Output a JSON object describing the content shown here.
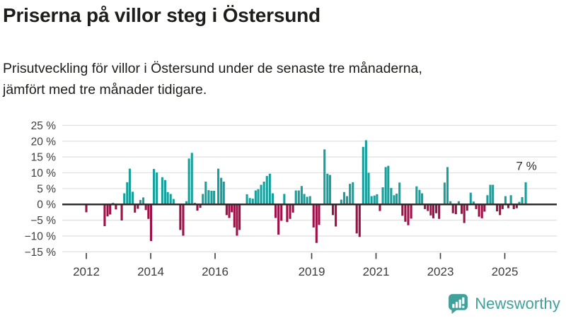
{
  "header": {
    "title": "Priserna på villor steg i Östersund",
    "subtitle_lines": [
      "Prisutveckling för villor i Östersund under de senaste tre månaderna,",
      "jämfört med tre månader tidigare."
    ]
  },
  "logo": {
    "text": "Newsworthy",
    "color": "#41a099",
    "icon": "bar-chart-speech-bubble-icon"
  },
  "chart_data": {
    "type": "bar",
    "title": "Priserna på villor steg i Östersund",
    "ylabel": "",
    "xlabel": "",
    "unit": "%",
    "ylim": [
      -15,
      25
    ],
    "y_ticks": [
      25,
      20,
      15,
      10,
      5,
      0,
      -5,
      -10,
      -15
    ],
    "x_tick_labels": [
      2012,
      2014,
      2016,
      2019,
      2021,
      2023,
      2025
    ],
    "grid": "horizontal",
    "legend": "none",
    "annotation": {
      "text": "7 %",
      "t": 2025.65,
      "value": 7
    },
    "colors": {
      "positive": "#18a19c",
      "negative": "#9e1148",
      "zero_line": "#2d2d2d",
      "gridline": "#e1e1e1"
    },
    "series_name": "Prisutveckling villor Östersund (3 mån vs föregående 3 mån), %",
    "series": [
      [
        2012.0,
        -2.5
      ],
      [
        2012.57,
        -6.9
      ],
      [
        2012.66,
        -3.8
      ],
      [
        2012.74,
        -3.2
      ],
      [
        2012.83,
        0.5
      ],
      [
        2012.92,
        -1.6
      ],
      [
        2013.1,
        -5.1
      ],
      [
        2013.18,
        3.5
      ],
      [
        2013.27,
        7.0
      ],
      [
        2013.35,
        11.3
      ],
      [
        2013.44,
        4.0
      ],
      [
        2013.51,
        -2.6
      ],
      [
        2013.6,
        -1.4
      ],
      [
        2013.68,
        1.4
      ],
      [
        2013.77,
        2.2
      ],
      [
        2013.85,
        -1.8
      ],
      [
        2013.93,
        -4.6
      ],
      [
        2014.01,
        -11.6
      ],
      [
        2014.1,
        11.2
      ],
      [
        2014.19,
        10.1
      ],
      [
        2014.36,
        8.6
      ],
      [
        2014.45,
        7.7
      ],
      [
        2014.53,
        3.9
      ],
      [
        2014.62,
        3.3
      ],
      [
        2014.71,
        1.7
      ],
      [
        2014.92,
        -8.1
      ],
      [
        2015.01,
        -9.9
      ],
      [
        2015.11,
        1.0
      ],
      [
        2015.19,
        14.5
      ],
      [
        2015.28,
        16.3
      ],
      [
        2015.37,
        0.5
      ],
      [
        2015.45,
        -2.0
      ],
      [
        2015.54,
        -1.1
      ],
      [
        2015.62,
        3.3
      ],
      [
        2015.71,
        7.2
      ],
      [
        2015.8,
        4.5
      ],
      [
        2015.89,
        4.3
      ],
      [
        2015.97,
        4.3
      ],
      [
        2016.1,
        11.3
      ],
      [
        2016.19,
        8.4
      ],
      [
        2016.27,
        7.2
      ],
      [
        2016.36,
        -3.4
      ],
      [
        2016.44,
        -4.3
      ],
      [
        2016.52,
        -2.5
      ],
      [
        2016.6,
        -7.3
      ],
      [
        2016.68,
        -9.9
      ],
      [
        2016.76,
        -8.1
      ],
      [
        2016.99,
        3.2
      ],
      [
        2017.08,
        2.0
      ],
      [
        2017.17,
        1.8
      ],
      [
        2017.26,
        4.4
      ],
      [
        2017.34,
        4.8
      ],
      [
        2017.43,
        6.2
      ],
      [
        2017.52,
        7.2
      ],
      [
        2017.61,
        9.0
      ],
      [
        2017.7,
        9.7
      ],
      [
        2017.79,
        3.5
      ],
      [
        2017.88,
        -4.3
      ],
      [
        2017.97,
        -9.6
      ],
      [
        2018.06,
        -5.2
      ],
      [
        2018.15,
        3.3
      ],
      [
        2018.24,
        -5.6
      ],
      [
        2018.33,
        -4.6
      ],
      [
        2018.42,
        -2.6
      ],
      [
        2018.51,
        4.4
      ],
      [
        2018.6,
        4.4
      ],
      [
        2018.69,
        5.8
      ],
      [
        2018.77,
        3.3
      ],
      [
        2018.86,
        2.4
      ],
      [
        2018.95,
        2.6
      ],
      [
        2019.06,
        -7.3
      ],
      [
        2019.15,
        -12.2
      ],
      [
        2019.23,
        -6.5
      ],
      [
        2019.4,
        17.4
      ],
      [
        2019.49,
        9.7
      ],
      [
        2019.57,
        9.3
      ],
      [
        2019.66,
        -3.4
      ],
      [
        2019.75,
        -7.0
      ],
      [
        2019.92,
        1.5
      ],
      [
        2020.01,
        3.9
      ],
      [
        2020.1,
        2.6
      ],
      [
        2020.19,
        6.5
      ],
      [
        2020.28,
        7.0
      ],
      [
        2020.4,
        -9.2
      ],
      [
        2020.49,
        -10.3
      ],
      [
        2020.6,
        18.2
      ],
      [
        2020.69,
        20.3
      ],
      [
        2020.77,
        10.0
      ],
      [
        2020.86,
        2.6
      ],
      [
        2020.95,
        2.8
      ],
      [
        2021.03,
        3.2
      ],
      [
        2021.12,
        -2.1
      ],
      [
        2021.21,
        5.4
      ],
      [
        2021.3,
        11.8
      ],
      [
        2021.38,
        12.2
      ],
      [
        2021.47,
        5.2
      ],
      [
        2021.56,
        2.9
      ],
      [
        2021.64,
        3.4
      ],
      [
        2021.73,
        6.9
      ],
      [
        2021.82,
        -3.6
      ],
      [
        2021.91,
        -5.5
      ],
      [
        2022.0,
        -6.6
      ],
      [
        2022.09,
        -4.5
      ],
      [
        2022.26,
        5.7
      ],
      [
        2022.35,
        4.6
      ],
      [
        2022.43,
        3.5
      ],
      [
        2022.52,
        -1.5
      ],
      [
        2022.61,
        -2.1
      ],
      [
        2022.7,
        -3.5
      ],
      [
        2022.78,
        -4.4
      ],
      [
        2022.87,
        -2.8
      ],
      [
        2022.96,
        -4.6
      ],
      [
        2023.13,
        6.9
      ],
      [
        2023.22,
        11.8
      ],
      [
        2023.31,
        1.0
      ],
      [
        2023.39,
        -2.8
      ],
      [
        2023.48,
        -3.1
      ],
      [
        2023.57,
        1.0
      ],
      [
        2023.66,
        -3.0
      ],
      [
        2023.74,
        -5.9
      ],
      [
        2023.83,
        -2.0
      ],
      [
        2023.94,
        3.7
      ],
      [
        2024.03,
        0.9
      ],
      [
        2024.11,
        -1.5
      ],
      [
        2024.2,
        -3.9
      ],
      [
        2024.29,
        -4.4
      ],
      [
        2024.37,
        -2.3
      ],
      [
        2024.46,
        2.9
      ],
      [
        2024.55,
        6.2
      ],
      [
        2024.63,
        6.2
      ],
      [
        2024.76,
        -2.2
      ],
      [
        2024.85,
        -3.4
      ],
      [
        2024.93,
        -1.5
      ],
      [
        2025.02,
        2.6
      ],
      [
        2025.11,
        -1.2
      ],
      [
        2025.19,
        2.9
      ],
      [
        2025.28,
        -1.5
      ],
      [
        2025.37,
        -1.2
      ],
      [
        2025.45,
        0.8
      ],
      [
        2025.54,
        2.3
      ],
      [
        2025.65,
        7.0
      ]
    ]
  }
}
